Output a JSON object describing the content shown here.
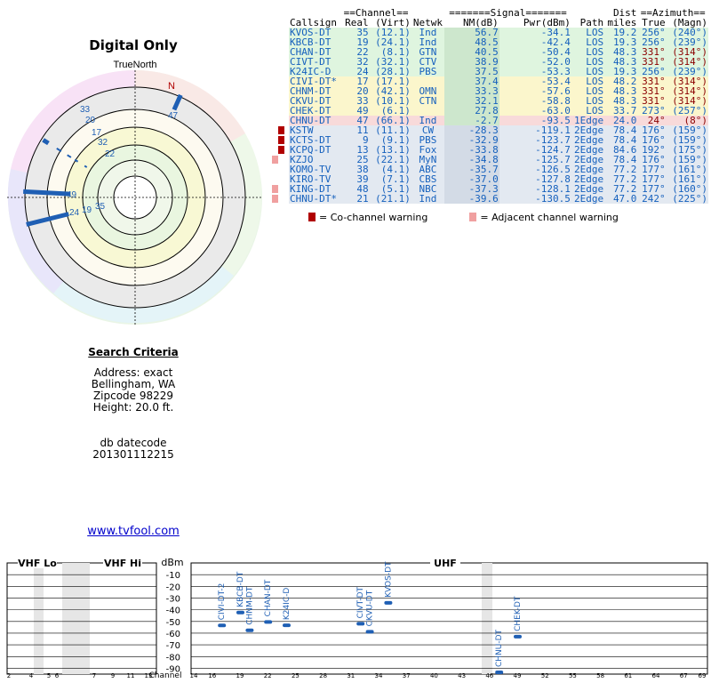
{
  "title": "Digital Only",
  "polar": {
    "north_label": "TrueNorth",
    "n_mark": "N"
  },
  "table": {
    "group_headers": {
      "channel": "==Channel==",
      "signal": "=======Signal=======",
      "dist": "Dist",
      "azimuth": "==Azimuth=="
    },
    "columns": [
      "Callsign",
      "Real",
      "(Virt)",
      "Netwk",
      "NM(dB)",
      "Pwr(dBm)",
      "Path",
      "miles",
      "True",
      "(Magn)"
    ],
    "rows": [
      {
        "callsign": "KVOS-DT",
        "real": "35",
        "virt": "(12.1)",
        "netwk": "Ind",
        "nm": "56.7",
        "pwr": "-34.1",
        "path": "LOS",
        "dist": "19.2",
        "az_true": "256°",
        "az_magn": "(240°)",
        "band": "green",
        "warn": ""
      },
      {
        "callsign": "KBCB-DT",
        "real": "19",
        "virt": "(24.1)",
        "netwk": "Ind",
        "nm": "48.5",
        "pwr": "-42.4",
        "path": "LOS",
        "dist": "19.3",
        "az_true": "256°",
        "az_magn": "(239°)",
        "band": "green",
        "warn": ""
      },
      {
        "callsign": "CHAN-DT",
        "real": "22",
        "virt": "(8.1)",
        "netwk": "GTN",
        "nm": "40.5",
        "pwr": "-50.4",
        "path": "LOS",
        "dist": "48.3",
        "az_true": "331°",
        "az_magn": "(314°)",
        "band": "green",
        "warn": ""
      },
      {
        "callsign": "CIVT-DT",
        "real": "32",
        "virt": "(32.1)",
        "netwk": "CTV",
        "nm": "38.9",
        "pwr": "-52.0",
        "path": "LOS",
        "dist": "48.3",
        "az_true": "331°",
        "az_magn": "(314°)",
        "band": "green",
        "warn": ""
      },
      {
        "callsign": "K24IC-D",
        "real": "24",
        "virt": "(28.1)",
        "netwk": "PBS",
        "nm": "37.5",
        "pwr": "-53.3",
        "path": "LOS",
        "dist": "19.3",
        "az_true": "256°",
        "az_magn": "(239°)",
        "band": "green",
        "warn": ""
      },
      {
        "callsign": "CIVI-DT*",
        "real": "17",
        "virt": "(17.1)",
        "netwk": "",
        "nm": "37.4",
        "pwr": "-53.4",
        "path": "LOS",
        "dist": "48.2",
        "az_true": "331°",
        "az_magn": "(314°)",
        "band": "yellow",
        "warn": ""
      },
      {
        "callsign": "CHNM-DT",
        "real": "20",
        "virt": "(42.1)",
        "netwk": "OMN",
        "nm": "33.3",
        "pwr": "-57.6",
        "path": "LOS",
        "dist": "48.3",
        "az_true": "331°",
        "az_magn": "(314°)",
        "band": "yellow",
        "warn": ""
      },
      {
        "callsign": "CKVU-DT",
        "real": "33",
        "virt": "(10.1)",
        "netwk": "CTN",
        "nm": "32.1",
        "pwr": "-58.8",
        "path": "LOS",
        "dist": "48.3",
        "az_true": "331°",
        "az_magn": "(314°)",
        "band": "yellow",
        "warn": ""
      },
      {
        "callsign": "CHEK-DT",
        "real": "49",
        "virt": "(6.1)",
        "netwk": "",
        "nm": "27.8",
        "pwr": "-63.0",
        "path": "LOS",
        "dist": "33.7",
        "az_true": "273°",
        "az_magn": "(257°)",
        "band": "yellow",
        "warn": ""
      },
      {
        "callsign": "CHNU-DT",
        "real": "47",
        "virt": "(66.1)",
        "netwk": "Ind",
        "nm": "-2.7",
        "pwr": "-93.5",
        "path": "1Edge",
        "dist": "24.0",
        "az_true": "24°",
        "az_magn": "(8°)",
        "band": "red",
        "warn": ""
      },
      {
        "callsign": "KSTW",
        "real": "11",
        "virt": "(11.1)",
        "netwk": "CW",
        "nm": "-28.3",
        "pwr": "-119.1",
        "path": "2Edge",
        "dist": "78.4",
        "az_true": "176°",
        "az_magn": "(159°)",
        "band": "grey",
        "warn": "co"
      },
      {
        "callsign": "KCTS-DT",
        "real": "9",
        "virt": "(9.1)",
        "netwk": "PBS",
        "nm": "-32.9",
        "pwr": "-123.7",
        "path": "2Edge",
        "dist": "78.4",
        "az_true": "176°",
        "az_magn": "(159°)",
        "band": "grey",
        "warn": "co"
      },
      {
        "callsign": "KCPQ-DT",
        "real": "13",
        "virt": "(13.1)",
        "netwk": "Fox",
        "nm": "-33.8",
        "pwr": "-124.7",
        "path": "2Edge",
        "dist": "84.6",
        "az_true": "192°",
        "az_magn": "(175°)",
        "band": "grey",
        "warn": "co"
      },
      {
        "callsign": "KZJO",
        "real": "25",
        "virt": "(22.1)",
        "netwk": "MyN",
        "nm": "-34.8",
        "pwr": "-125.7",
        "path": "2Edge",
        "dist": "78.4",
        "az_true": "176°",
        "az_magn": "(159°)",
        "band": "grey",
        "warn": "adj"
      },
      {
        "callsign": "KOMO-TV",
        "real": "38",
        "virt": "(4.1)",
        "netwk": "ABC",
        "nm": "-35.7",
        "pwr": "-126.5",
        "path": "2Edge",
        "dist": "77.2",
        "az_true": "177°",
        "az_magn": "(161°)",
        "band": "grey",
        "warn": ""
      },
      {
        "callsign": "KIRO-TV",
        "real": "39",
        "virt": "(7.1)",
        "netwk": "CBS",
        "nm": "-37.0",
        "pwr": "-127.8",
        "path": "2Edge",
        "dist": "77.2",
        "az_true": "177°",
        "az_magn": "(161°)",
        "band": "grey",
        "warn": ""
      },
      {
        "callsign": "KING-DT",
        "real": "48",
        "virt": "(5.1)",
        "netwk": "NBC",
        "nm": "-37.3",
        "pwr": "-128.1",
        "path": "2Edge",
        "dist": "77.2",
        "az_true": "177°",
        "az_magn": "(160°)",
        "band": "grey",
        "warn": "adj"
      },
      {
        "callsign": "CHNU-DT*",
        "real": "21",
        "virt": "(21.1)",
        "netwk": "Ind",
        "nm": "-39.6",
        "pwr": "-130.5",
        "path": "2Edge",
        "dist": "47.0",
        "az_true": "242°",
        "az_magn": "(225°)",
        "band": "grey",
        "warn": "adj"
      }
    ],
    "band_colors": {
      "green": "#dff5df",
      "yellow": "#fbf6cc",
      "red": "#f8dada",
      "grey": "#e3e9f1"
    },
    "legend": {
      "co": "= Co-channel warning",
      "adj": "= Adjacent channel warning"
    }
  },
  "criteria": {
    "heading": "Search Criteria",
    "address": "Address: exact",
    "city": "Bellingham, WA",
    "zip": "Zipcode 98229",
    "height": "Height: 20.0 ft.",
    "db_label": "db datecode",
    "db_code": "201301112215"
  },
  "link": "www.tvfool.com",
  "spectrum": {
    "vhf_lo_label": "VHF Lo",
    "vhf_hi_label": "VHF Hi",
    "uhf_label": "UHF",
    "dbm_label": "dBm",
    "channel_label": "Channel",
    "dbm_ticks": [
      "-10",
      "-20",
      "-30",
      "-40",
      "-50",
      "-60",
      "-70",
      "-80",
      "-90"
    ],
    "vhf_channel_ticks": [
      "2",
      "4",
      "5",
      "6",
      "7",
      "9",
      "11",
      "13"
    ],
    "uhf_channel_ticks": [
      "14",
      "16",
      "19",
      "22",
      "25",
      "28",
      "31",
      "34",
      "37",
      "40",
      "43",
      "46",
      "49",
      "52",
      "55",
      "58",
      "61",
      "64",
      "67",
      "69"
    ]
  },
  "chart_data": {
    "type": "scatter",
    "title": "",
    "xlabel": "Channel",
    "ylabel": "dBm",
    "ylim": [
      0,
      -95
    ],
    "series": [
      {
        "name": "UHF stations",
        "points": [
          {
            "label": "CIVI-DT-2",
            "x": 17,
            "y": -53.4
          },
          {
            "label": "KBCB-DT",
            "x": 19,
            "y": -42.4
          },
          {
            "label": "CHNM-DT",
            "x": 20,
            "y": -57.6
          },
          {
            "label": "CHAN-DT",
            "x": 22,
            "y": -50.4
          },
          {
            "label": "K24IC-D",
            "x": 24,
            "y": -53.3
          },
          {
            "label": "CIVT-DT",
            "x": 32,
            "y": -52.0
          },
          {
            "label": "CKVU-DT",
            "x": 33,
            "y": -58.8
          },
          {
            "label": "KVOS-DT",
            "x": 35,
            "y": -34.1
          },
          {
            "label": "CHNU-DT",
            "x": 47,
            "y": -93.5
          },
          {
            "label": "CHEK-DT",
            "x": 49,
            "y": -63.0
          }
        ]
      }
    ]
  },
  "polar_stations": [
    {
      "label": "33",
      "az": -58
    },
    {
      "label": "20",
      "az": -58
    },
    {
      "label": "17",
      "az": -58
    },
    {
      "label": "32",
      "az": -58
    },
    {
      "label": "22",
      "az": -58
    },
    {
      "label": "47",
      "az": 24
    },
    {
      "label": "49",
      "az": -87
    },
    {
      "label": "24",
      "az": -104
    },
    {
      "label": "19",
      "az": -104
    },
    {
      "label": "35",
      "az": -104
    }
  ],
  "colors": {
    "accent": "#1560bd",
    "warn_co": "#b00000",
    "warn_adj": "#f0a0a0",
    "marker": "#1f5fb4"
  }
}
